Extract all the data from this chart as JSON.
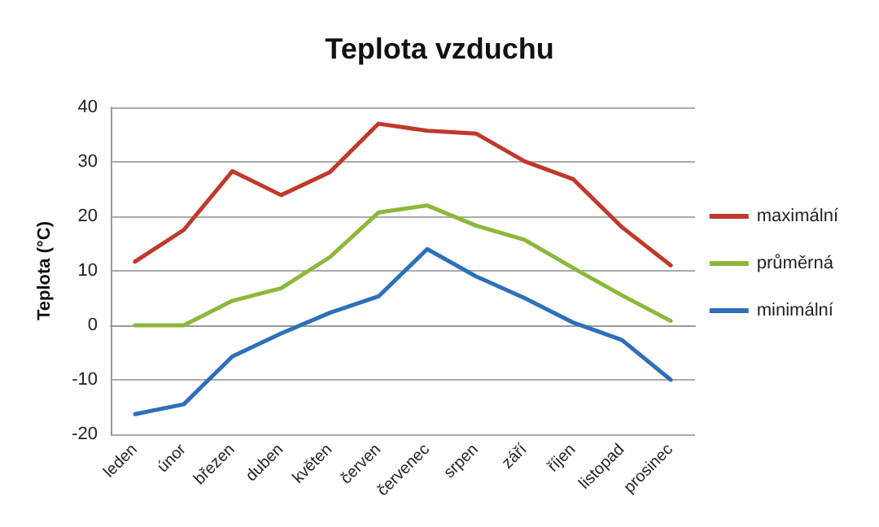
{
  "chart_data": {
    "type": "line",
    "title": "Teplota vzduchu",
    "ylabel": "Teplota (°C)",
    "categories": [
      "leden",
      "únor",
      "březen",
      "duben",
      "květen",
      "červen",
      "červenec",
      "srpen",
      "září",
      "říjen",
      "listopad",
      "prosinec"
    ],
    "series": [
      {
        "name": "maximální",
        "color": "#c0392b",
        "values": [
          11.7,
          17.5,
          28.3,
          23.9,
          28.1,
          37,
          35.7,
          35.2,
          30.1,
          26.8,
          18,
          11
        ]
      },
      {
        "name": "průměrná",
        "color": "#8cb83a",
        "values": [
          0,
          0,
          4.5,
          6.8,
          12.5,
          20.7,
          22,
          18.3,
          15.7,
          10.5,
          5.5,
          0.8
        ]
      },
      {
        "name": "minimální",
        "color": "#2e6fba",
        "values": [
          -16.3,
          -14.5,
          -5.7,
          -1.5,
          2.3,
          5.3,
          14,
          9,
          5,
          0.5,
          -2.7,
          -10
        ]
      }
    ],
    "ylim": [
      -20,
      40
    ],
    "yticks": [
      -20,
      -10,
      0,
      10,
      20,
      30,
      40
    ],
    "grid": "y",
    "legend": "right",
    "marker": "none",
    "line_style": "solid"
  }
}
